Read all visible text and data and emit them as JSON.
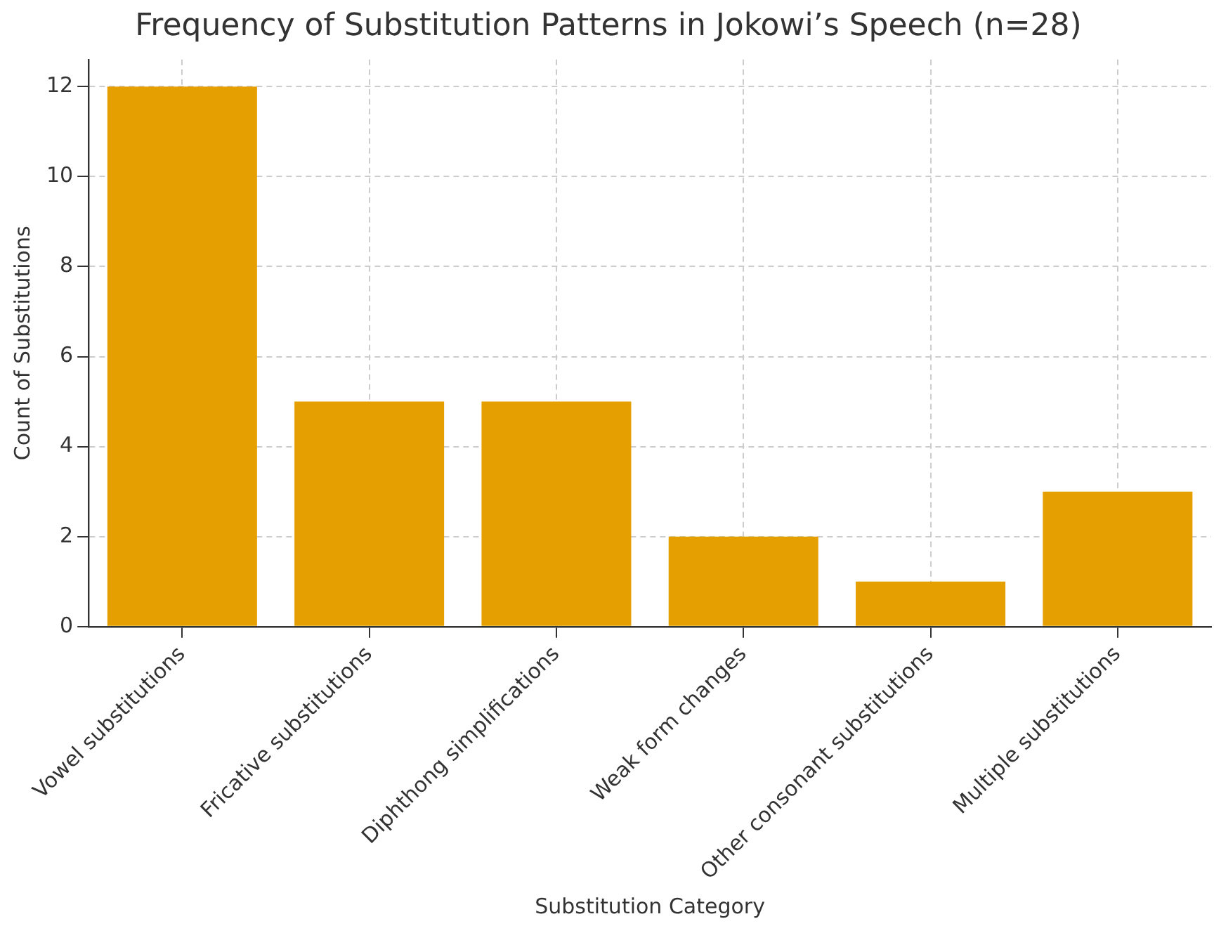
{
  "chart_data": {
    "type": "bar",
    "title": "Frequency of Substitution Patterns in Jokowi’s Speech (n=28)",
    "xlabel": "Substitution Category",
    "ylabel": "Count of Substitutions",
    "categories": [
      "Vowel substitutions",
      "Fricative substitutions",
      "Diphthong simplifications",
      "Weak form changes",
      "Other consonant substitutions",
      "Multiple substitutions"
    ],
    "values": [
      12,
      5,
      5,
      2,
      1,
      3
    ],
    "color": "#e69f00",
    "ylim": [
      0,
      12.6
    ],
    "yticks": [
      0,
      2,
      4,
      6,
      8,
      10,
      12
    ],
    "grid": true,
    "legend": false
  }
}
